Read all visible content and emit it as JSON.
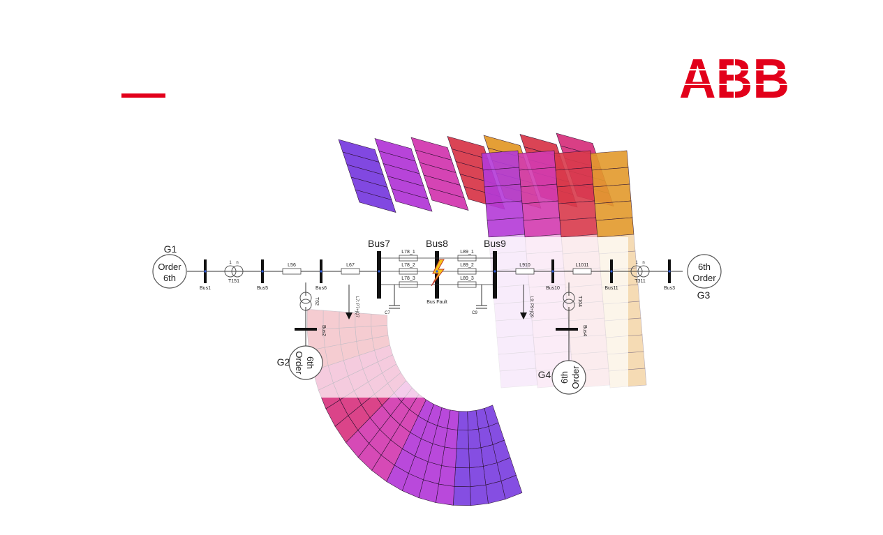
{
  "brand": {
    "logo_text": "ABB",
    "accent_color": "#e2001a"
  },
  "diagram": {
    "generators": [
      {
        "name": "G1",
        "order_lines": [
          "Order",
          "6th"
        ]
      },
      {
        "name": "G2",
        "order_lines": [
          "6th",
          "Order"
        ]
      },
      {
        "name": "G3",
        "order_lines": [
          "6th",
          "Order"
        ]
      },
      {
        "name": "G4",
        "order_lines": [
          "6th",
          "Order"
        ]
      }
    ],
    "buses_large": [
      "Bus7",
      "Bus8",
      "Bus9"
    ],
    "buses_small": [
      "Bus1",
      "Bus5",
      "Bus6",
      "Bus10",
      "Bus11",
      "Bus3",
      "Bus2",
      "Bus4"
    ],
    "lines": [
      "L56",
      "L67",
      "L78_1",
      "L78_2",
      "L78_3",
      "L89_1",
      "L89_2",
      "L89_3",
      "L910",
      "L1011"
    ],
    "transformers": [
      "T151",
      "T311",
      "T62",
      "T104"
    ],
    "fault_label": "Bus Fault",
    "loads": [
      "P7",
      "P9"
    ],
    "capacitors": [
      "C7",
      "C9"
    ]
  }
}
